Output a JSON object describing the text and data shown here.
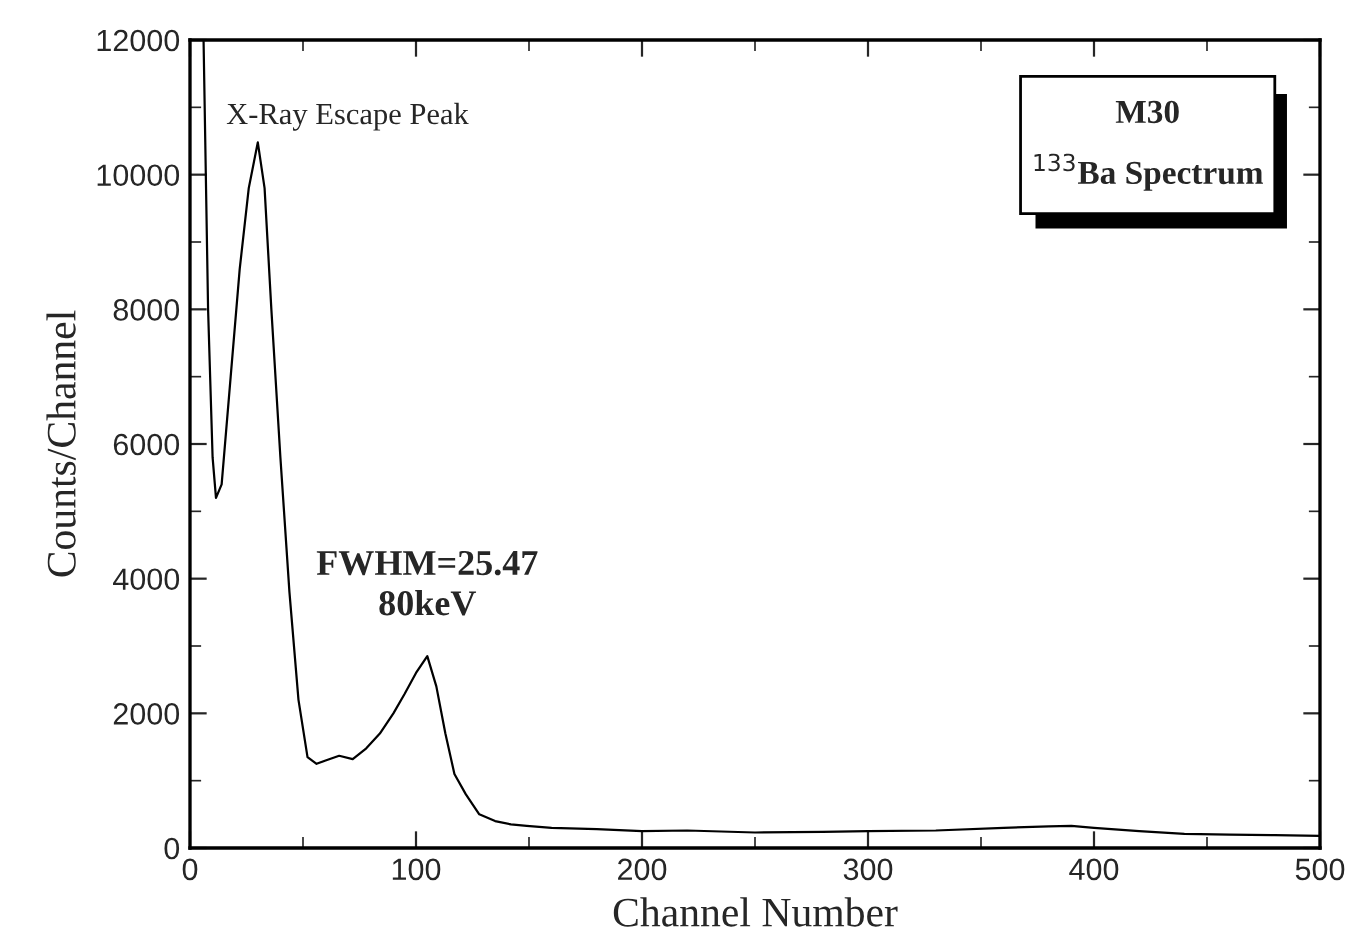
{
  "chart_data": {
    "type": "line",
    "title": "M30",
    "subtitle": "$^{133}$Ba Spectrum",
    "xlabel": "Channel Number",
    "ylabel": "Counts/Channel",
    "x": [
      6,
      8,
      10,
      11.5,
      14,
      18,
      22,
      26,
      30,
      33,
      36,
      40,
      44,
      48,
      52,
      56,
      60,
      66,
      72,
      78,
      84,
      90,
      95,
      100,
      105,
      109,
      113,
      117,
      122,
      128,
      135,
      142,
      149,
      160,
      180,
      200,
      220,
      250,
      280,
      300,
      330,
      360,
      380,
      390,
      400,
      420,
      440,
      460,
      480,
      500
    ],
    "series": [
      {
        "color": "#000000",
        "values": [
          12000,
          8000,
          5800,
          5200,
          5400,
          7000,
          8600,
          9800,
          10480,
          9800,
          8000,
          5800,
          3800,
          2200,
          1350,
          1250,
          1300,
          1370,
          1320,
          1480,
          1700,
          2000,
          2290,
          2600,
          2850,
          2400,
          1700,
          1100,
          800,
          500,
          400,
          350,
          330,
          300,
          280,
          250,
          260,
          230,
          240,
          250,
          260,
          300,
          320,
          330,
          300,
          250,
          210,
          200,
          190,
          180
        ]
      }
    ],
    "xlim": [
      0,
      500
    ],
    "ylim": [
      0,
      12000
    ],
    "xticks": [
      0,
      100,
      200,
      300,
      400,
      500
    ],
    "yticks": [
      0,
      2000,
      4000,
      6000,
      8000,
      10000,
      12000
    ],
    "annotations": [
      "X-Ray Escape Peak",
      {
        "text": "FWHM=25.47\n80keV",
        "x": 105,
        "y": 2850
      }
    ],
    "grid": false,
    "legend": false,
    "marker": "none",
    "line_style": "solid"
  }
}
